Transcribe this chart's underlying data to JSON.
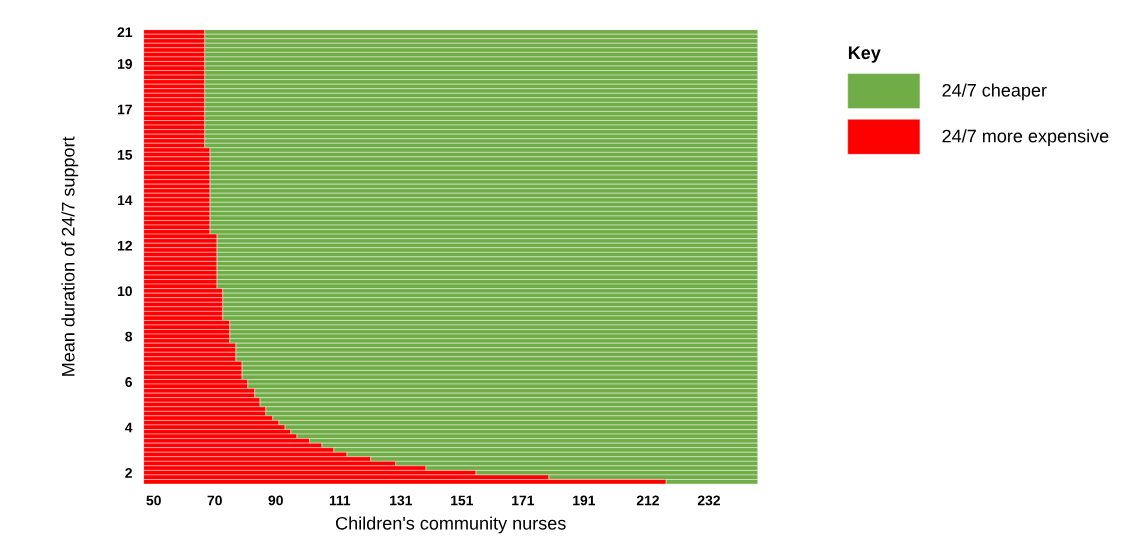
{
  "chart_data": {
    "type": "bar",
    "orientation": "horizontal",
    "xlabel": "Children's community nurses",
    "ylabel": "Mean duration of 24/7 support",
    "legend_title": "Key",
    "legend": "right",
    "categories": [
      "21",
      null,
      null,
      null,
      null,
      null,
      null,
      "19",
      null,
      null,
      null,
      null,
      null,
      null,
      null,
      null,
      null,
      "17",
      null,
      null,
      null,
      null,
      null,
      null,
      null,
      null,
      null,
      "15",
      null,
      null,
      null,
      null,
      null,
      null,
      null,
      null,
      null,
      "14",
      null,
      null,
      null,
      null,
      null,
      null,
      null,
      null,
      null,
      "12",
      null,
      null,
      null,
      null,
      null,
      null,
      null,
      null,
      null,
      "10",
      null,
      null,
      null,
      null,
      null,
      null,
      null,
      null,
      null,
      "8",
      null,
      null,
      null,
      null,
      null,
      null,
      null,
      null,
      null,
      "6",
      null,
      null,
      null,
      null,
      null,
      null,
      null,
      null,
      null,
      "4",
      null,
      null,
      null,
      null,
      null,
      null,
      null,
      null,
      null,
      "2",
      null,
      null
    ],
    "xlim": [
      46.7,
      248.0
    ],
    "xticks": [
      50,
      70,
      90,
      111,
      131,
      151,
      171,
      191,
      212,
      232
    ],
    "series": [
      {
        "name": "24/7 cheaper",
        "color": "#70ad47",
        "base": [
          66.7,
          66.7,
          66.7,
          66.7,
          66.7,
          66.7,
          66.7,
          66.7,
          66.7,
          66.7,
          66.7,
          66.7,
          66.7,
          66.7,
          66.7,
          66.7,
          66.7,
          66.7,
          66.7,
          66.7,
          66.7,
          66.7,
          66.7,
          66.7,
          66.7,
          66.7,
          68.4,
          68.4,
          68.4,
          68.4,
          68.4,
          68.4,
          68.4,
          68.4,
          68.4,
          68.4,
          68.4,
          68.4,
          68.4,
          68.4,
          68.4,
          68.4,
          68.4,
          68.4,
          68.4,
          70.7,
          70.7,
          70.7,
          70.7,
          70.7,
          70.7,
          70.7,
          70.7,
          70.7,
          70.7,
          70.7,
          70.7,
          72.6,
          72.6,
          72.6,
          72.6,
          72.6,
          72.6,
          72.6,
          74.9,
          74.9,
          74.9,
          74.9,
          74.9,
          76.9,
          76.9,
          76.9,
          76.9,
          78.9,
          78.9,
          78.9,
          78.9,
          80.8,
          80.8,
          83.1,
          83.1,
          84.8,
          84.8,
          86.7,
          86.7,
          89.0,
          91.0,
          93.0,
          94.9,
          96.9,
          101.1,
          105.1,
          109.0,
          113.3,
          121.1,
          129.3,
          139.2,
          155.6,
          179.5,
          217.9
        ],
        "values": [
          181.3,
          181.3,
          181.3,
          181.3,
          181.3,
          181.3,
          181.3,
          181.3,
          181.3,
          181.3,
          181.3,
          181.3,
          181.3,
          181.3,
          181.3,
          181.3,
          181.3,
          181.3,
          181.3,
          181.3,
          181.3,
          181.3,
          181.3,
          181.3,
          181.3,
          181.3,
          179.6,
          179.6,
          179.6,
          179.6,
          179.6,
          179.6,
          179.6,
          179.6,
          179.6,
          179.6,
          179.6,
          179.6,
          179.6,
          179.6,
          179.6,
          179.6,
          179.6,
          179.6,
          179.6,
          177.3,
          177.3,
          177.3,
          177.3,
          177.3,
          177.3,
          177.3,
          177.3,
          177.3,
          177.3,
          177.3,
          177.3,
          175.4,
          175.4,
          175.4,
          175.4,
          175.4,
          175.4,
          175.4,
          173.1,
          173.1,
          173.1,
          173.1,
          173.1,
          171.1,
          171.1,
          171.1,
          171.1,
          169.1,
          169.1,
          169.1,
          169.1,
          167.2,
          167.2,
          164.9,
          164.9,
          163.2,
          163.2,
          161.3,
          161.3,
          159.0,
          157.0,
          155.0,
          153.1,
          151.1,
          146.9,
          142.9,
          139.0,
          134.7,
          126.9,
          118.7,
          108.8,
          92.4,
          68.5,
          30.1
        ]
      },
      {
        "name": "24/7 more expensive",
        "color": "#ff0000",
        "base": [
          46.7,
          46.7,
          46.7,
          46.7,
          46.7,
          46.7,
          46.7,
          46.7,
          46.7,
          46.7,
          46.7,
          46.7,
          46.7,
          46.7,
          46.7,
          46.7,
          46.7,
          46.7,
          46.7,
          46.7,
          46.7,
          46.7,
          46.7,
          46.7,
          46.7,
          46.7,
          46.7,
          46.7,
          46.7,
          46.7,
          46.7,
          46.7,
          46.7,
          46.7,
          46.7,
          46.7,
          46.7,
          46.7,
          46.7,
          46.7,
          46.7,
          46.7,
          46.7,
          46.7,
          46.7,
          46.7,
          46.7,
          46.7,
          46.7,
          46.7,
          46.7,
          46.7,
          46.7,
          46.7,
          46.7,
          46.7,
          46.7,
          46.7,
          46.7,
          46.7,
          46.7,
          46.7,
          46.7,
          46.7,
          46.7,
          46.7,
          46.7,
          46.7,
          46.7,
          46.7,
          46.7,
          46.7,
          46.7,
          46.7,
          46.7,
          46.7,
          46.7,
          46.7,
          46.7,
          46.7,
          46.7,
          46.7,
          46.7,
          46.7,
          46.7,
          46.7,
          46.7,
          46.7,
          46.7,
          46.7,
          46.7,
          46.7,
          46.7,
          46.7,
          46.7,
          46.7,
          46.7,
          46.7,
          46.7,
          46.7
        ],
        "values": [
          20.0,
          20.0,
          20.0,
          20.0,
          20.0,
          20.0,
          20.0,
          20.0,
          20.0,
          20.0,
          20.0,
          20.0,
          20.0,
          20.0,
          20.0,
          20.0,
          20.0,
          20.0,
          20.0,
          20.0,
          20.0,
          20.0,
          20.0,
          20.0,
          20.0,
          20.0,
          21.7,
          21.7,
          21.7,
          21.7,
          21.7,
          21.7,
          21.7,
          21.7,
          21.7,
          21.7,
          21.7,
          21.7,
          21.7,
          21.7,
          21.7,
          21.7,
          21.7,
          21.7,
          21.7,
          24.0,
          24.0,
          24.0,
          24.0,
          24.0,
          24.0,
          24.0,
          24.0,
          24.0,
          24.0,
          24.0,
          24.0,
          25.9,
          25.9,
          25.9,
          25.9,
          25.9,
          25.9,
          25.9,
          28.2,
          28.2,
          28.2,
          28.2,
          28.2,
          30.2,
          30.2,
          30.2,
          30.2,
          32.2,
          32.2,
          32.2,
          32.2,
          34.1,
          34.1,
          36.4,
          36.4,
          38.1,
          38.1,
          40.0,
          40.0,
          42.3,
          44.3,
          46.3,
          48.2,
          50.2,
          54.4,
          58.4,
          62.3,
          66.6,
          74.4,
          82.6,
          92.5,
          108.9,
          132.8,
          171.2
        ]
      }
    ]
  }
}
